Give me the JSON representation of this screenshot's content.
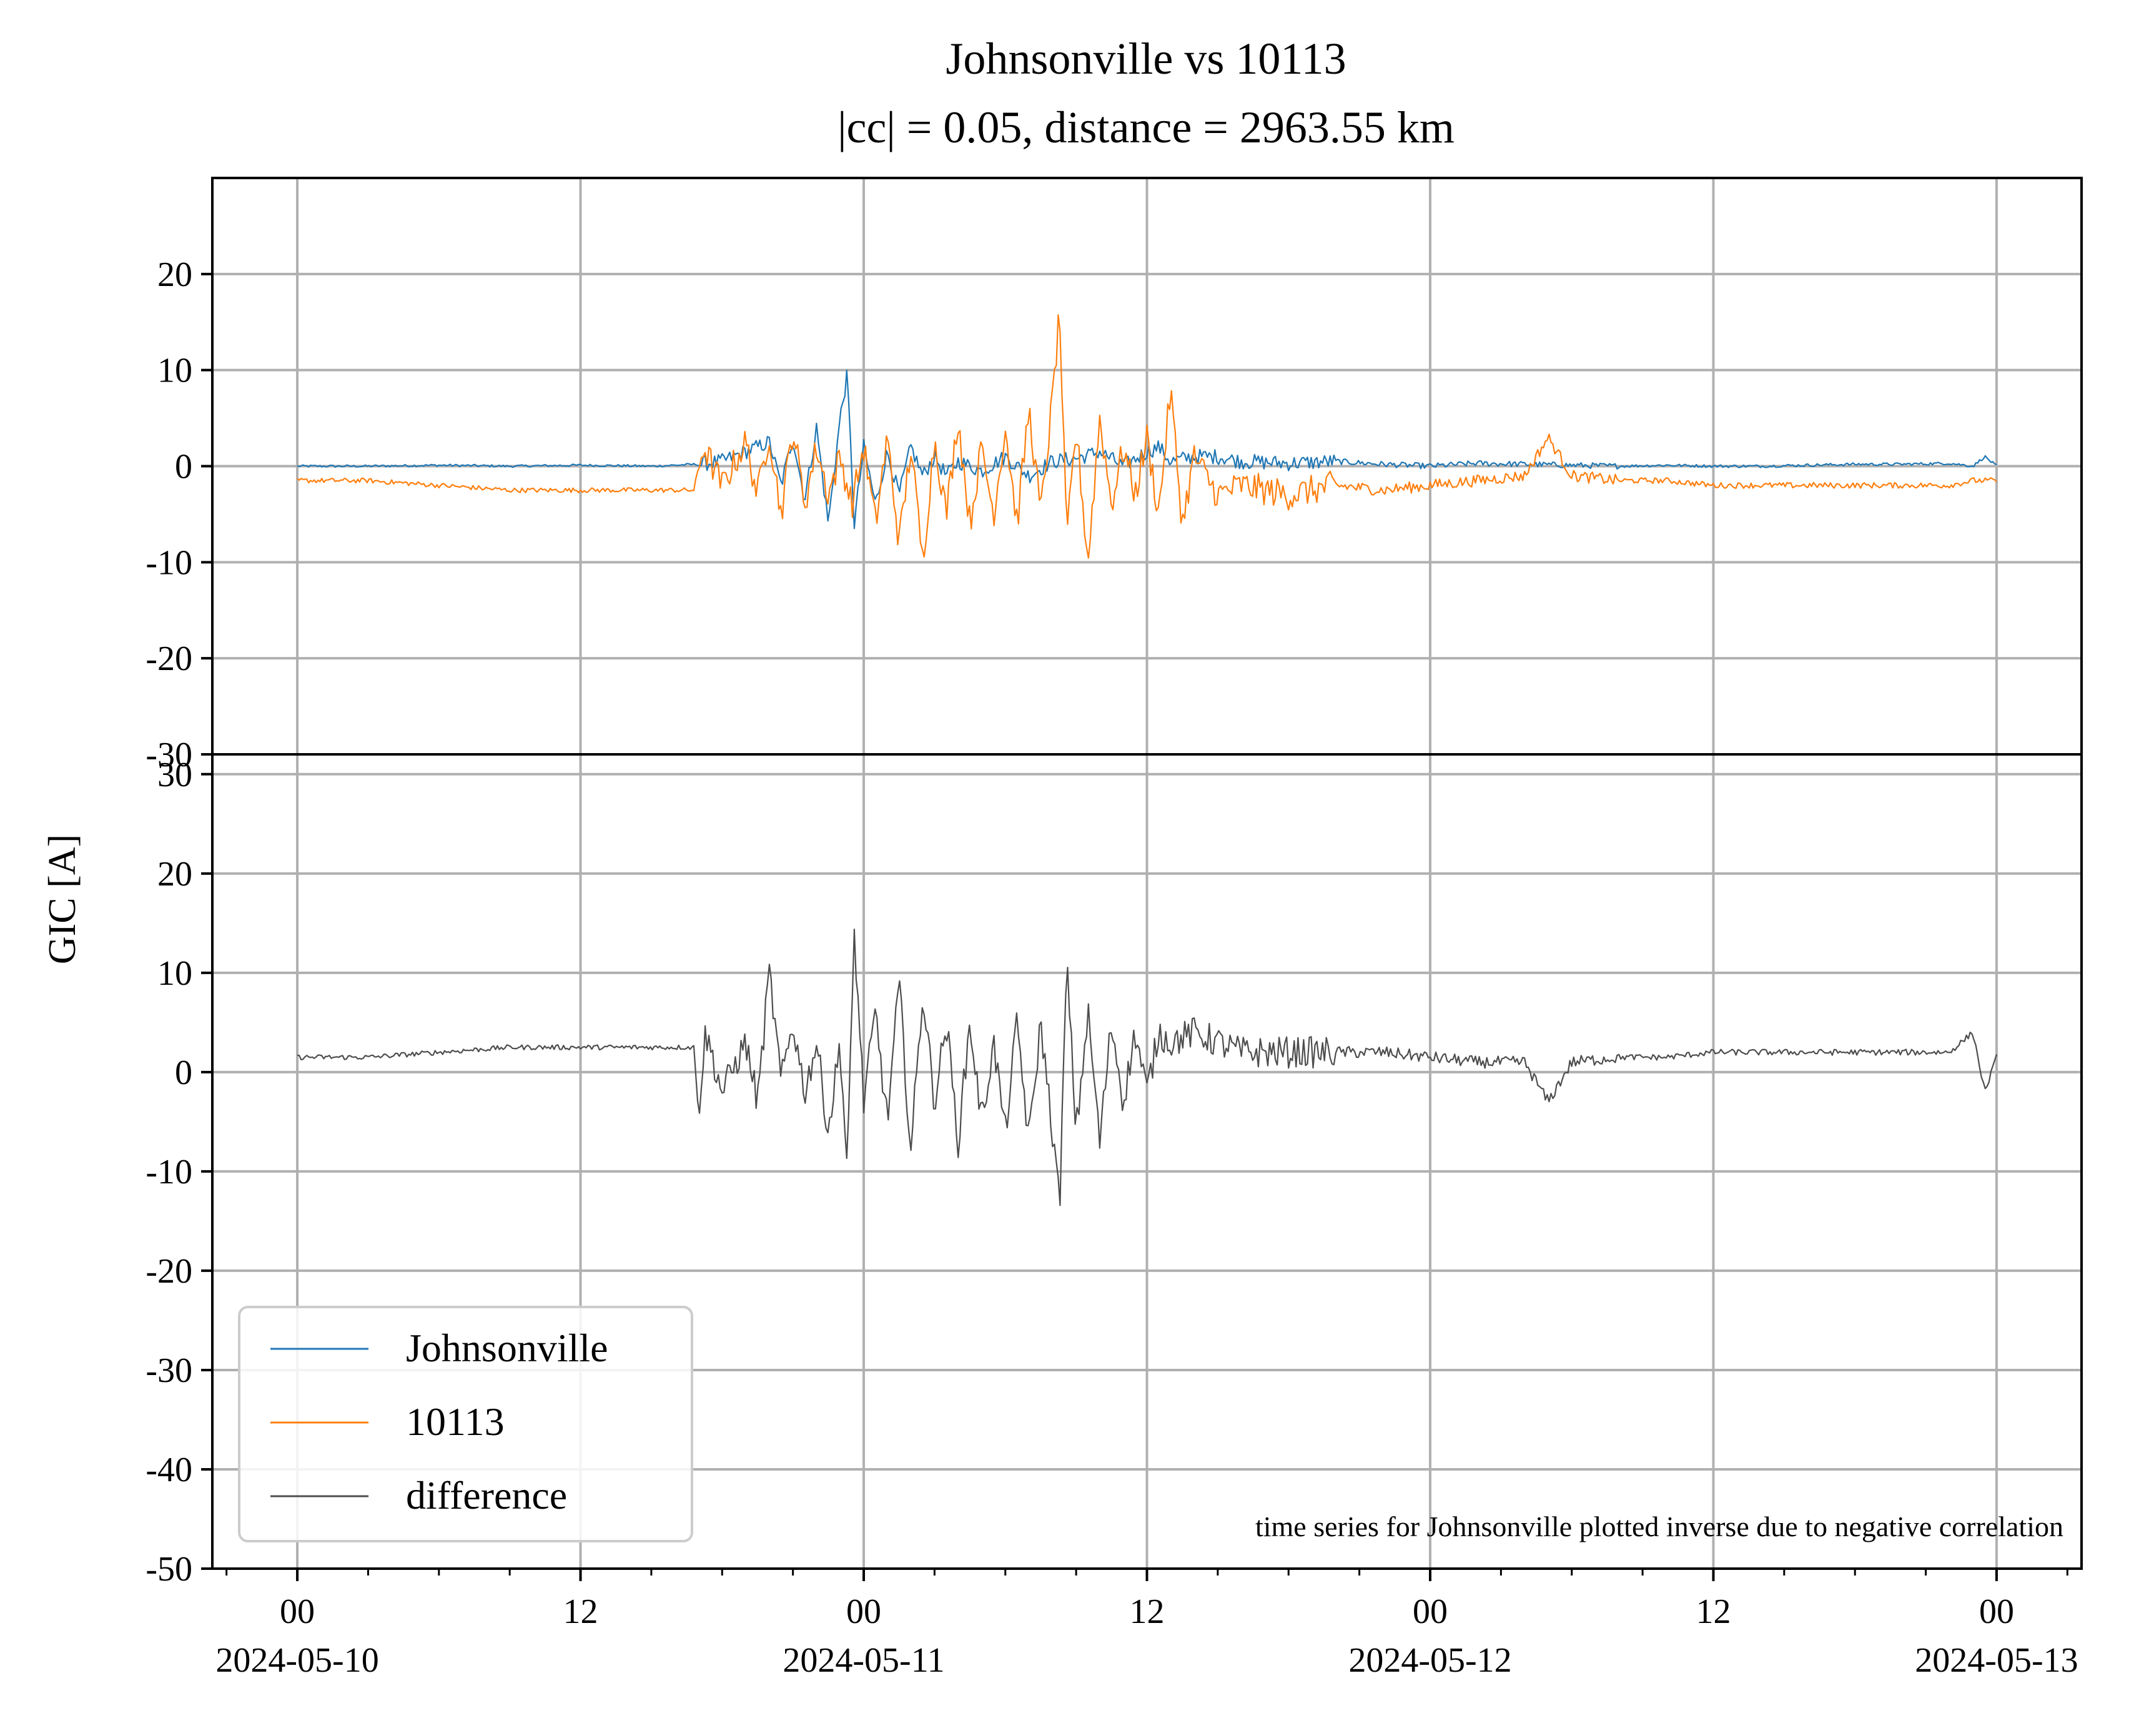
{
  "chart_data": {
    "type": "line",
    "title": "Johnsonville vs 10113",
    "subtitle": "|cc| = 0.05, distance = 2963.55 km",
    "ylabel": "GIC [A]",
    "annotation": "time series for Johnsonville plotted inverse due to negative correlation",
    "legend": {
      "placement": "lower-left",
      "entries": [
        {
          "label": "Johnsonville",
          "color": "#1f77b4"
        },
        {
          "label": "10113",
          "color": "#ff7f0e"
        },
        {
          "label": "difference",
          "color": "#4d4d4d"
        }
      ]
    },
    "x_ticks": [
      {
        "main": "00",
        "date": "2024-05-10",
        "hours": 0
      },
      {
        "main": "12",
        "date": "",
        "hours": 12
      },
      {
        "main": "00",
        "date": "2024-05-11",
        "hours": 24
      },
      {
        "main": "12",
        "date": "",
        "hours": 36
      },
      {
        "main": "00",
        "date": "2024-05-12",
        "hours": 48
      },
      {
        "main": "12",
        "date": "",
        "hours": 60
      },
      {
        "main": "00",
        "date": "2024-05-13",
        "hours": 72
      }
    ],
    "xlim_hours": [
      -3.6,
      75.6
    ],
    "grid": true,
    "panels": [
      {
        "name": "top",
        "ylim": [
          -30,
          30
        ],
        "yticks": [
          "20",
          "10",
          "0",
          "-10",
          "-20",
          "-30"
        ],
        "ytick_values": [
          20,
          10,
          0,
          -10,
          -20,
          -30
        ],
        "series": [
          {
            "name": "Johnsonville",
            "color": "#1f77b4",
            "x_hours": [
              0,
              3,
              6,
              9,
              12,
              15,
              17,
              18,
              19,
              20,
              20.5,
              21,
              21.5,
              22,
              22.5,
              23,
              23.3,
              23.6,
              24,
              24.5,
              25,
              25.5,
              26,
              26.5,
              27,
              27.5,
              28,
              29,
              30,
              31,
              32,
              33,
              34,
              35,
              36,
              36.5,
              37,
              38,
              39,
              40,
              42,
              44,
              46,
              48,
              50,
              52,
              54,
              56,
              58,
              60,
              62,
              64,
              66,
              68,
              70,
              71,
              71.5,
              72
            ],
            "y": [
              0,
              0,
              0.1,
              0,
              0.1,
              0,
              0.2,
              0.5,
              1.5,
              2.5,
              -2,
              3,
              -3.5,
              4,
              -6,
              5,
              9.5,
              -6,
              2,
              -4,
              1.5,
              -3,
              2,
              -1,
              1,
              -1,
              0.5,
              -0.5,
              1,
              -1,
              0.5,
              0.8,
              1.5,
              0,
              1.5,
              2,
              0.5,
              1,
              1,
              0.5,
              0.3,
              0.5,
              0.2,
              0,
              0.3,
              0.2,
              0.1,
              0,
              0.1,
              0,
              0,
              0.1,
              0.2,
              0.2,
              0.3,
              0,
              1,
              0
            ]
          },
          {
            "name": "10113",
            "color": "#ff7f0e",
            "x_hours": [
              0,
              3,
              6,
              9,
              12,
              15,
              16.8,
              17.2,
              18,
              19,
              19.5,
              20,
              20.5,
              21,
              21.5,
              22,
              22.5,
              23,
              23.5,
              24,
              24.5,
              25,
              25.5,
              26,
              26.5,
              27,
              27.5,
              28,
              28.5,
              29,
              29.5,
              30,
              30.5,
              31,
              31.5,
              32,
              32.3,
              32.6,
              33,
              33.5,
              34,
              34.5,
              35,
              35.5,
              36,
              36.5,
              37,
              37.5,
              38,
              39,
              40,
              42,
              44,
              46,
              48,
              50,
              52,
              53,
              54,
              56,
              58,
              60,
              62,
              64,
              66,
              68,
              70,
              71,
              72
            ],
            "y": [
              -1.5,
              -1.5,
              -2,
              -2.5,
              -2.5,
              -2.5,
              -2.5,
              2,
              -2,
              2.5,
              -3,
              3.5,
              -5,
              4,
              -4,
              2,
              -3,
              1,
              -4,
              2,
              -6,
              3,
              -8,
              2,
              -10,
              3,
              -5,
              5,
              -6,
              2,
              -5,
              4,
              -6,
              6,
              -5,
              7,
              16,
              -8,
              4,
              -10,
              5,
              -4,
              2,
              -3,
              3,
              -5,
              8,
              -6,
              1,
              -3,
              -2,
              -3,
              -2,
              -2.5,
              -2,
              -1.5,
              -1,
              3,
              -1,
              -1.5,
              -1.5,
              -2,
              -2,
              -2,
              -2,
              -2,
              -2,
              -1.5,
              -1.5
            ]
          }
        ]
      },
      {
        "name": "bottom",
        "ylim": [
          -50,
          32
        ],
        "yticks": [
          "30",
          "20",
          "10",
          "0",
          "-10",
          "-20",
          "-30",
          "-40",
          "-50"
        ],
        "ytick_values": [
          30,
          20,
          10,
          0,
          -10,
          -20,
          -30,
          -40,
          -50
        ],
        "series": [
          {
            "name": "difference",
            "color": "#4d4d4d",
            "x_hours": [
              0,
              3,
              6,
              9,
              12,
              15,
              16.8,
              17,
              17.3,
              18,
              19,
              19.5,
              20,
              20.5,
              21,
              21.5,
              22,
              22.5,
              23,
              23.3,
              23.6,
              24,
              24.5,
              25,
              25.5,
              26,
              26.5,
              27,
              27.5,
              28,
              28.5,
              29,
              29.5,
              30,
              30.5,
              31,
              31.5,
              32,
              32.3,
              32.6,
              33,
              33.5,
              34,
              34.5,
              35,
              35.5,
              36,
              36.5,
              37,
              38,
              39,
              40,
              42,
              44,
              46,
              48,
              50,
              52,
              53,
              54,
              56,
              58,
              60,
              62,
              64,
              66,
              68,
              70,
              71,
              71.5,
              72
            ],
            "y": [
              1.5,
              1.5,
              2,
              2.5,
              2.5,
              2.5,
              2.5,
              -4,
              4,
              -2,
              3,
              -3,
              10,
              -1,
              5,
              -2,
              3,
              -6,
              3,
              -10,
              14,
              -3,
              6,
              -5,
              9,
              -8,
              8,
              -3,
              5,
              -7,
              5,
              -5,
              3,
              -6,
              5,
              -7,
              5,
              -6,
              -13.5,
              11,
              -6,
              6,
              -7,
              5,
              -3,
              4,
              -2,
              4,
              3,
              4,
              3,
              2,
              2,
              2,
              2,
              1.5,
              1,
              1,
              -3,
              1,
              1.5,
              1.5,
              2,
              2,
              2,
              2,
              2,
              2,
              4,
              -2,
              1.5
            ]
          }
        ]
      }
    ]
  }
}
